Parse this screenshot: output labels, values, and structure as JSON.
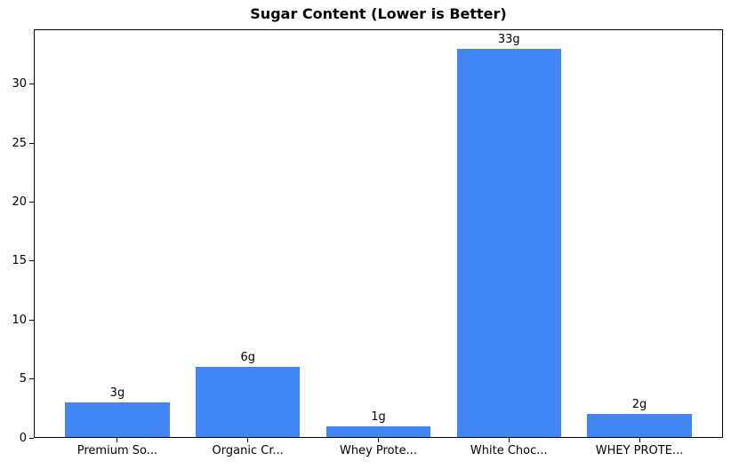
{
  "chart_data": {
    "type": "bar",
    "title": "Sugar Content (Lower is Better)",
    "categories": [
      "Premium So...",
      "Organic Cr...",
      "Whey Prote...",
      "White Choc...",
      "WHEY PROTE..."
    ],
    "values": [
      3,
      6,
      1,
      33,
      2
    ],
    "bar_labels": [
      "3g",
      "6g",
      "1g",
      "33g",
      "2g"
    ],
    "xlabel": "",
    "ylabel": "",
    "ylim": [
      0,
      34.65
    ],
    "yticks": [
      0,
      5,
      10,
      15,
      20,
      25,
      30
    ],
    "grid": false,
    "legend": null,
    "bar_color": "#4285F4",
    "axis_color": "#000000",
    "background_color": "#FFFFFF",
    "text_color": "#000000"
  }
}
